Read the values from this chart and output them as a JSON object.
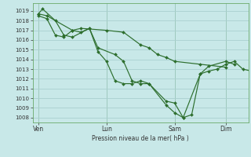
{
  "background_color": "#c8e8e8",
  "grid_color": "#aacfcf",
  "line_color": "#2d6e2d",
  "marker_color": "#2d6e2d",
  "xlabel": "Pression niveau de la mer( hPa )",
  "ylim": [
    1007.5,
    1019.8
  ],
  "yticks": [
    1008,
    1009,
    1010,
    1011,
    1012,
    1013,
    1014,
    1015,
    1016,
    1017,
    1018,
    1019
  ],
  "xtick_labels": [
    "Ven",
    "Lun",
    "Sam",
    "Dim"
  ],
  "xtick_positions": [
    0,
    48,
    96,
    132
  ],
  "xlim": [
    -4,
    148
  ],
  "vline_positions": [
    0,
    48,
    96,
    132
  ],
  "series": [
    [
      1018.5,
      1018.2,
      1016.5,
      1016.3,
      1017.0,
      1017.2,
      1017.0,
      1016.8,
      1015.5,
      1015.2,
      1014.5,
      1014.2,
      1013.8,
      1013.5,
      1013.2
    ],
    [
      1018.7,
      1019.2,
      1018.0,
      1016.5,
      1016.3,
      1017.2,
      1014.8,
      1013.8,
      1011.8,
      1011.5,
      1011.5,
      1011.8,
      1011.5,
      1009.7,
      1009.5,
      1008.0,
      1008.3,
      1012.5,
      1012.8,
      1013.0,
      1013.5,
      1013.8,
      1013.0,
      1012.8
    ],
    [
      1018.7,
      1018.5,
      1017.0,
      1016.8,
      1017.2,
      1015.2,
      1014.5,
      1013.8,
      1011.8,
      1011.5,
      1011.5,
      1009.3,
      1008.5,
      1008.0,
      1012.5,
      1013.3,
      1013.8,
      1013.5
    ]
  ],
  "series_x": [
    [
      0,
      6,
      12,
      18,
      24,
      30,
      48,
      60,
      72,
      78,
      84,
      90,
      96,
      114,
      132
    ],
    [
      0,
      3,
      12,
      18,
      24,
      36,
      42,
      48,
      54,
      60,
      66,
      72,
      78,
      90,
      96,
      102,
      108,
      114,
      120,
      126,
      132,
      138,
      144,
      150
    ],
    [
      0,
      6,
      24,
      30,
      36,
      42,
      54,
      60,
      66,
      72,
      78,
      90,
      96,
      102,
      114,
      120,
      132,
      138
    ]
  ]
}
